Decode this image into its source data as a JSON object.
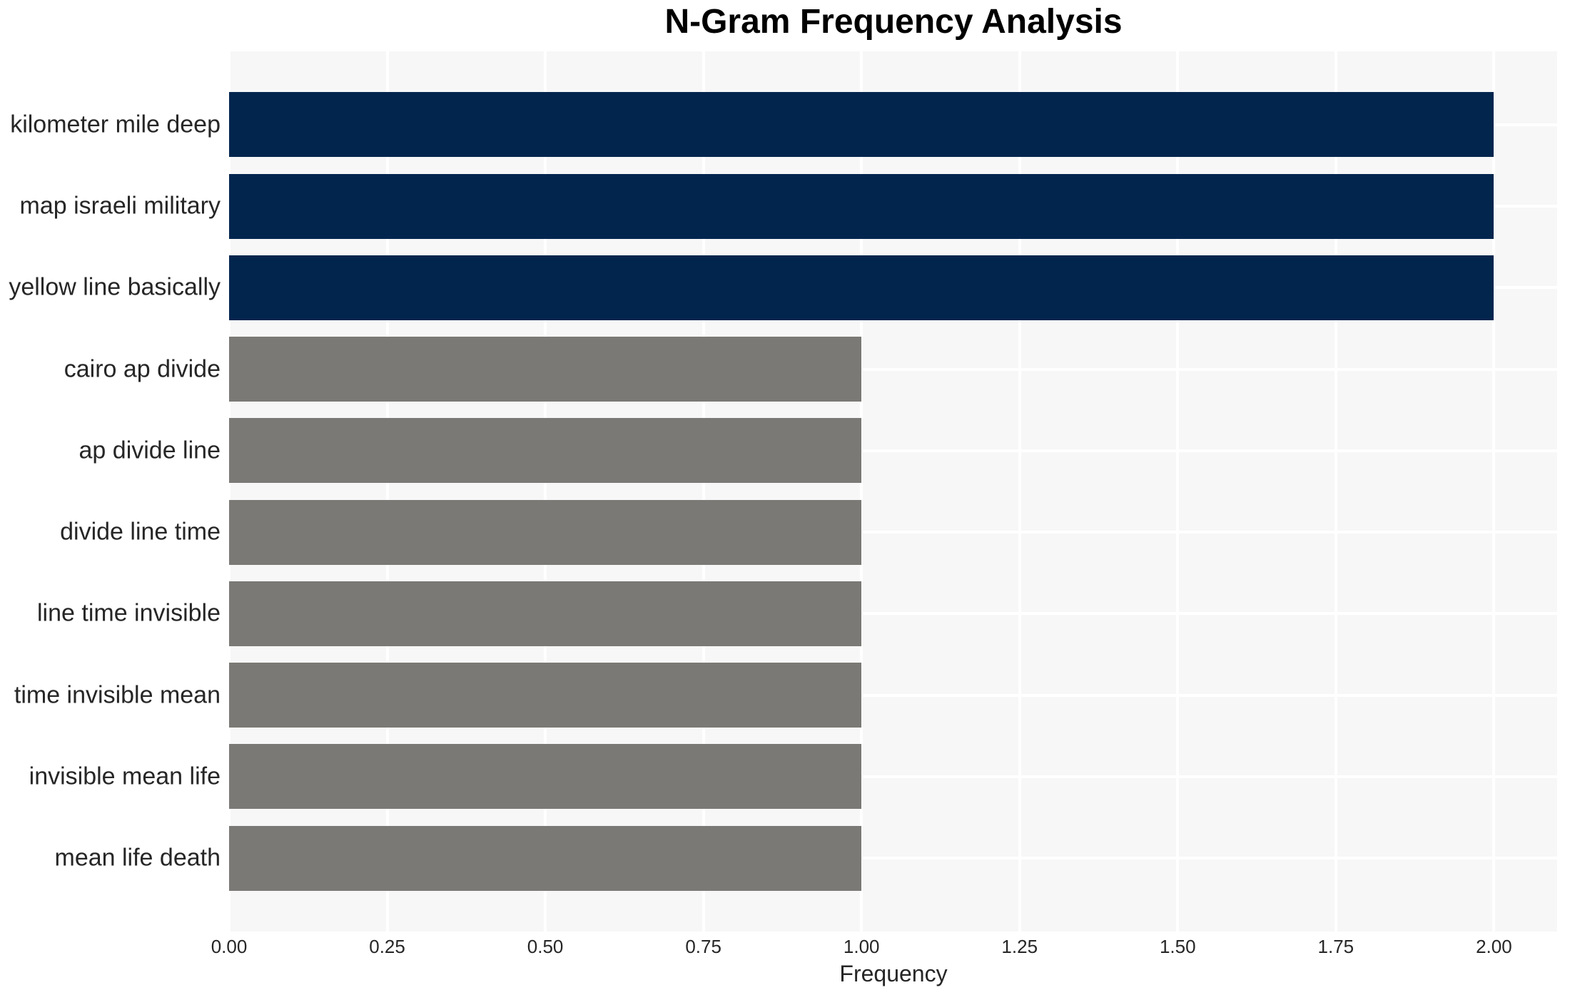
{
  "chart_data": {
    "type": "bar",
    "orientation": "horizontal",
    "title": "N-Gram Frequency Analysis",
    "categories": [
      "kilometer mile deep",
      "map israeli military",
      "yellow line basically",
      "cairo ap divide",
      "ap divide line",
      "divide line time",
      "line time invisible",
      "time invisible mean",
      "invisible mean life",
      "mean life death"
    ],
    "values": [
      2,
      2,
      2,
      1,
      1,
      1,
      1,
      1,
      1,
      1
    ],
    "xlabel": "Frequency",
    "ylabel": "",
    "xlim": [
      0,
      2.1
    ],
    "x_ticks": [
      0,
      0.25,
      0.5,
      0.75,
      1,
      1.25,
      1.5,
      1.75,
      2
    ],
    "x_tick_labels": [
      "0.00",
      "0.25",
      "0.50",
      "0.75",
      "1.00",
      "1.25",
      "1.50",
      "1.75",
      "2.00"
    ],
    "grid": true,
    "legend": false,
    "bar_colors": [
      "#02254e",
      "#02254e",
      "#02254e",
      "#7a7975",
      "#7a7975",
      "#7a7975",
      "#7a7975",
      "#7a7975",
      "#7a7975",
      "#7a7975"
    ],
    "colors": {
      "high_frequency_bar": "#02254e",
      "low_frequency_bar": "#7a7975",
      "plot_background": "#f7f7f7",
      "gridline": "#ffffff",
      "page_background": "#ffffff",
      "tick_text": "#262626",
      "title_text": "#000000"
    }
  }
}
